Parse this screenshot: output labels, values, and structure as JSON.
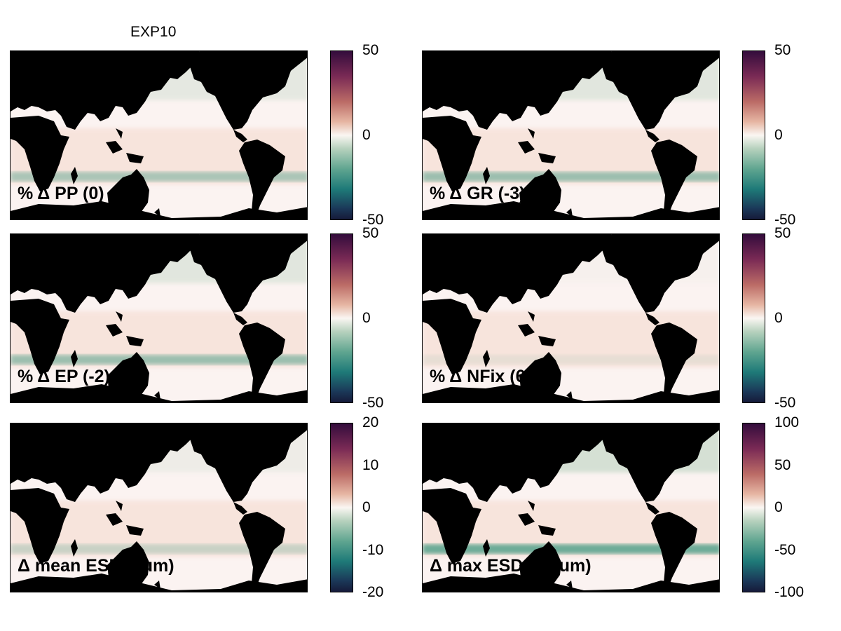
{
  "title": "EXP10",
  "colormap": [
    "#330c3c",
    "#bb6b66",
    "#faf6f2",
    "#5fa590",
    "#161a3a"
  ],
  "land_color": "#000000",
  "ocean_background": "#fbf3f1",
  "panels": [
    {
      "label": "% Δ PP (0)",
      "colorbar_ticks": [
        "50",
        "0",
        "-50"
      ],
      "green_level": 0.5
    },
    {
      "label": "% Δ GR (-3)",
      "colorbar_ticks": [
        "50",
        "0",
        "-50"
      ],
      "green_level": 0.6
    },
    {
      "label": "% Δ EP (-2)",
      "colorbar_ticks": [
        "50",
        "0",
        "-50"
      ],
      "green_level": 0.6
    },
    {
      "label": "% Δ NFix (6)",
      "colorbar_ticks": [
        "50",
        "0",
        "-50"
      ],
      "green_level": 0.1
    },
    {
      "label": "Δ mean ESD (0um)",
      "colorbar_ticks": [
        "20",
        "10",
        "0",
        "-10",
        "-20"
      ],
      "green_level": 0.3
    },
    {
      "label": "Δ max ESD (-13um)",
      "colorbar_ticks": [
        "100",
        "50",
        "0",
        "-50",
        "-100"
      ],
      "green_level": 0.9
    }
  ]
}
